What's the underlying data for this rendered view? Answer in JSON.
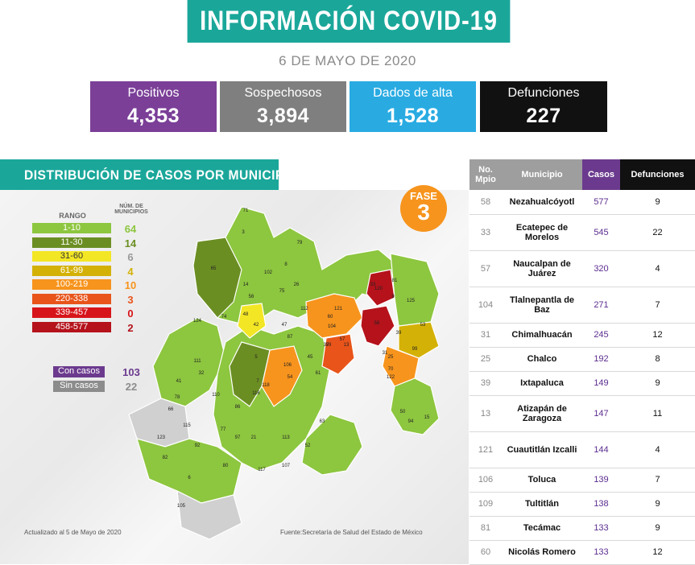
{
  "header": {
    "title": "INFORMACIÓN COVID-19",
    "date": "6 DE MAYO DE 2020"
  },
  "stats": [
    {
      "label": "Positivos",
      "value": "4,353",
      "color": "#7b3f98"
    },
    {
      "label": "Sospechosos",
      "value": "3,894",
      "color": "#7f7f7f"
    },
    {
      "label": "Dados de alta",
      "value": "1,528",
      "color": "#29abe2"
    },
    {
      "label": "Defunciones",
      "value": "227",
      "color": "#111111"
    }
  ],
  "map": {
    "title": "DISTRIBUCIÓN DE CASOS POR MUNICIPIO",
    "fase": {
      "label": "FASE",
      "number": "3",
      "color": "#f7941d"
    },
    "legend": {
      "col_range": "RANGO",
      "col_count": "NÚM. DE MUNICIPIOS",
      "rows": [
        {
          "range": "1-10",
          "count": "64",
          "color": "#8dc63f",
          "count_color": "#8dc63f"
        },
        {
          "range": "11-30",
          "count": "14",
          "color": "#6b8e23",
          "count_color": "#6b8e23"
        },
        {
          "range": "31-60",
          "count": "6",
          "color": "#f3e625",
          "count_color": "#999999"
        },
        {
          "range": "61-99",
          "count": "4",
          "color": "#d4b106",
          "count_color": "#d4b106"
        },
        {
          "range": "100-219",
          "count": "10",
          "color": "#f7941d",
          "count_color": "#f7941d"
        },
        {
          "range": "220-338",
          "count": "3",
          "color": "#e8541a",
          "count_color": "#e8541a"
        },
        {
          "range": "339-457",
          "count": "0",
          "color": "#d7141a",
          "count_color": "#d7141a"
        },
        {
          "range": "458-577",
          "count": "2",
          "color": "#b5121b",
          "count_color": "#b5121b"
        }
      ],
      "with_cases": {
        "label": "Con casos",
        "count": "103",
        "color": "#6b3a8e"
      },
      "without_cases": {
        "label": "Sin casos",
        "count": "22",
        "color": "#8c8c8c"
      }
    },
    "updated": "Actualizado al 5 de Mayo de 2020",
    "source": "Fuente:Secretaría de Salud del Estado de México",
    "region_labels": [
      "71",
      "3",
      "79",
      "65",
      "102",
      "26",
      "75",
      "8",
      "14",
      "56",
      "112",
      "124",
      "74",
      "42",
      "48",
      "47",
      "60",
      "121",
      "104",
      "57",
      "59",
      "33",
      "58",
      "39",
      "25",
      "120",
      "81",
      "13",
      "87",
      "37",
      "70",
      "31",
      "106",
      "54",
      "118",
      "116",
      "111",
      "32",
      "41",
      "78",
      "66",
      "115",
      "110",
      "86",
      "77",
      "97",
      "21",
      "113",
      "63",
      "52",
      "123",
      "82",
      "92",
      "80",
      "6",
      "107",
      "117",
      "105",
      "5",
      "7",
      "61",
      "45",
      "99",
      "53",
      "94",
      "15",
      "50",
      "122",
      "9",
      "125"
    ]
  },
  "table": {
    "headers": {
      "no": "No. Mpio",
      "municipio": "Municipio",
      "casos": "Casos",
      "defunciones": "Defunciones"
    },
    "header_colors": {
      "no": "#9e9e9e",
      "municipio": "#9e9e9e",
      "casos": "#6b3a8e",
      "defunciones": "#111111"
    },
    "rows": [
      {
        "no": "58",
        "municipio": "Nezahualcóyotl",
        "casos": "577",
        "defunciones": "9"
      },
      {
        "no": "33",
        "municipio": "Ecatepec de Morelos",
        "casos": "545",
        "defunciones": "22"
      },
      {
        "no": "57",
        "municipio": "Naucalpan de Juárez",
        "casos": "320",
        "defunciones": "4"
      },
      {
        "no": "104",
        "municipio": "Tlalnepantla de Baz",
        "casos": "271",
        "defunciones": "7"
      },
      {
        "no": "31",
        "municipio": "Chimalhuacán",
        "casos": "245",
        "defunciones": "12"
      },
      {
        "no": "25",
        "municipio": "Chalco",
        "casos": "192",
        "defunciones": "8"
      },
      {
        "no": "39",
        "municipio": "Ixtapaluca",
        "casos": "149",
        "defunciones": "9"
      },
      {
        "no": "13",
        "municipio": "Atizapán de Zaragoza",
        "casos": "147",
        "defunciones": "11"
      },
      {
        "no": "121",
        "municipio": "Cuautitlán Izcalli",
        "casos": "144",
        "defunciones": "4"
      },
      {
        "no": "106",
        "municipio": "Toluca",
        "casos": "139",
        "defunciones": "7"
      },
      {
        "no": "109",
        "municipio": "Tultitlán",
        "casos": "138",
        "defunciones": "9"
      },
      {
        "no": "81",
        "municipio": "Tecámac",
        "casos": "133",
        "defunciones": "9"
      },
      {
        "no": "60",
        "municipio": "Nicolás Romero",
        "casos": "133",
        "defunciones": "12"
      }
    ]
  }
}
